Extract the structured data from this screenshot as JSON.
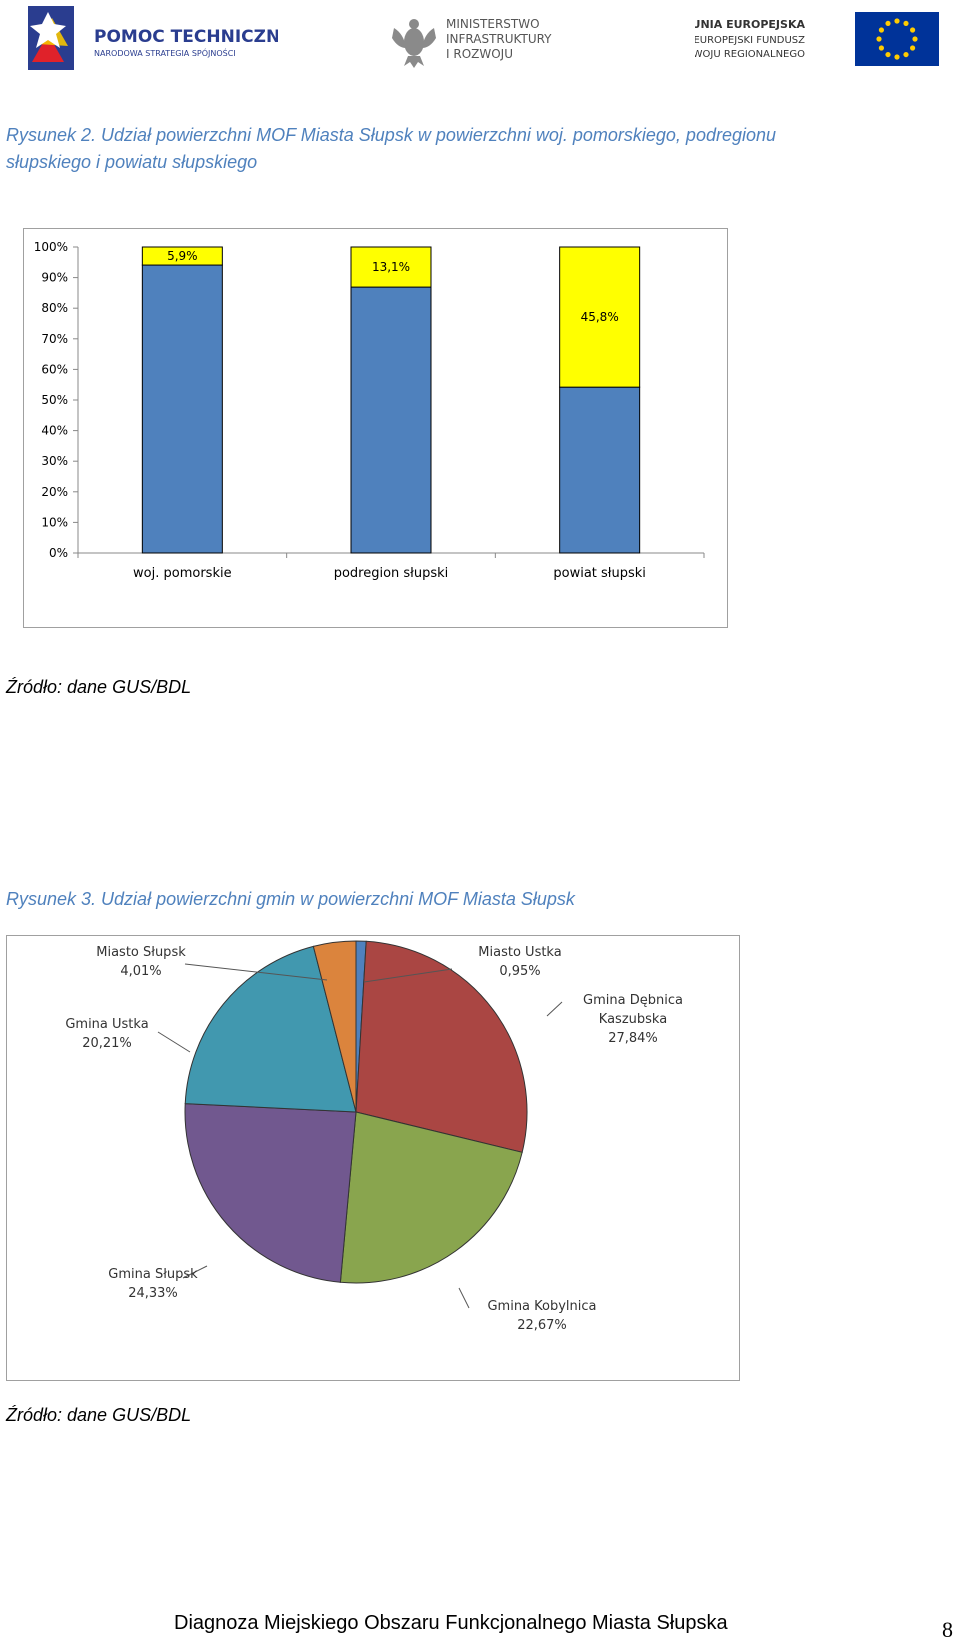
{
  "header": {
    "logo_pomoc": {
      "title": "POMOC TECHNICZNA",
      "subtitle": "NARODOWA STRATEGIA SPÓJNOŚCI"
    },
    "logo_ministerstwo": {
      "line1": "MINISTERSTWO",
      "line2": "INFRASTRUKTURY",
      "line3": "I ROZWOJU"
    },
    "logo_ue": {
      "line1": "UNIA EUROPEJSKA",
      "line2": "EUROPEJSKI FUNDUSZ",
      "line3": "ROZWOJU REGIONALNEGO"
    }
  },
  "figure2": {
    "caption_line1": "Rysunek 2. Udział powierzchni MOF Miasta Słupsk w powierzchni woj. pomorskiego, podregionu",
    "caption_line2": "słupskiego i powiatu słupskiego",
    "source": "Źródło: dane GUS/BDL"
  },
  "figure3": {
    "caption": "Rysunek 3. Udział powierzchni gmin w powierzchni MOF Miasta Słupsk",
    "source": "Źródło: dane GUS/BDL"
  },
  "footer": {
    "title": "Diagnoza Miejskiego Obszaru Funkcjonalnego Miasta Słupska",
    "page": "8"
  },
  "chart_data": [
    {
      "type": "bar",
      "stacked": true,
      "percent_stacked": true,
      "categories": [
        "woj. pomorskie",
        "podregion słupski",
        "powiat słupski"
      ],
      "series": [
        {
          "values": [
            94.1,
            86.9,
            54.2
          ],
          "color": "#4f81bd"
        },
        {
          "values": [
            5.9,
            13.1,
            45.8
          ],
          "color": "#ffff00"
        }
      ],
      "data_labels": [
        "5,9%",
        "13,1%",
        "45,8%"
      ],
      "y_ticks": [
        "0%",
        "10%",
        "20%",
        "30%",
        "40%",
        "50%",
        "60%",
        "70%",
        "80%",
        "90%",
        "100%"
      ],
      "ylim": [
        0,
        100
      ],
      "grid": false,
      "legend": "none"
    },
    {
      "type": "pie",
      "slices": [
        {
          "name_lines": [
            "Miasto Ustka"
          ],
          "label": "0,95%",
          "value": 0.95,
          "color": "#4f81bd"
        },
        {
          "name_lines": [
            "Gmina Dębnica",
            "Kaszubska"
          ],
          "label": "27,84%",
          "value": 27.84,
          "color": "#aa4643"
        },
        {
          "name_lines": [
            "Gmina Kobylnica"
          ],
          "label": "22,67%",
          "value": 22.67,
          "color": "#89a54e"
        },
        {
          "name_lines": [
            "Gmina Słupsk"
          ],
          "label": "24,33%",
          "value": 24.33,
          "color": "#71588f"
        },
        {
          "name_lines": [
            "Gmina Ustka"
          ],
          "label": "20,21%",
          "value": 20.21,
          "color": "#4198af"
        },
        {
          "name_lines": [
            "Miasto Słupsk"
          ],
          "label": "4,01%",
          "value": 4.01,
          "color": "#db843d"
        }
      ],
      "legend": "none"
    }
  ]
}
